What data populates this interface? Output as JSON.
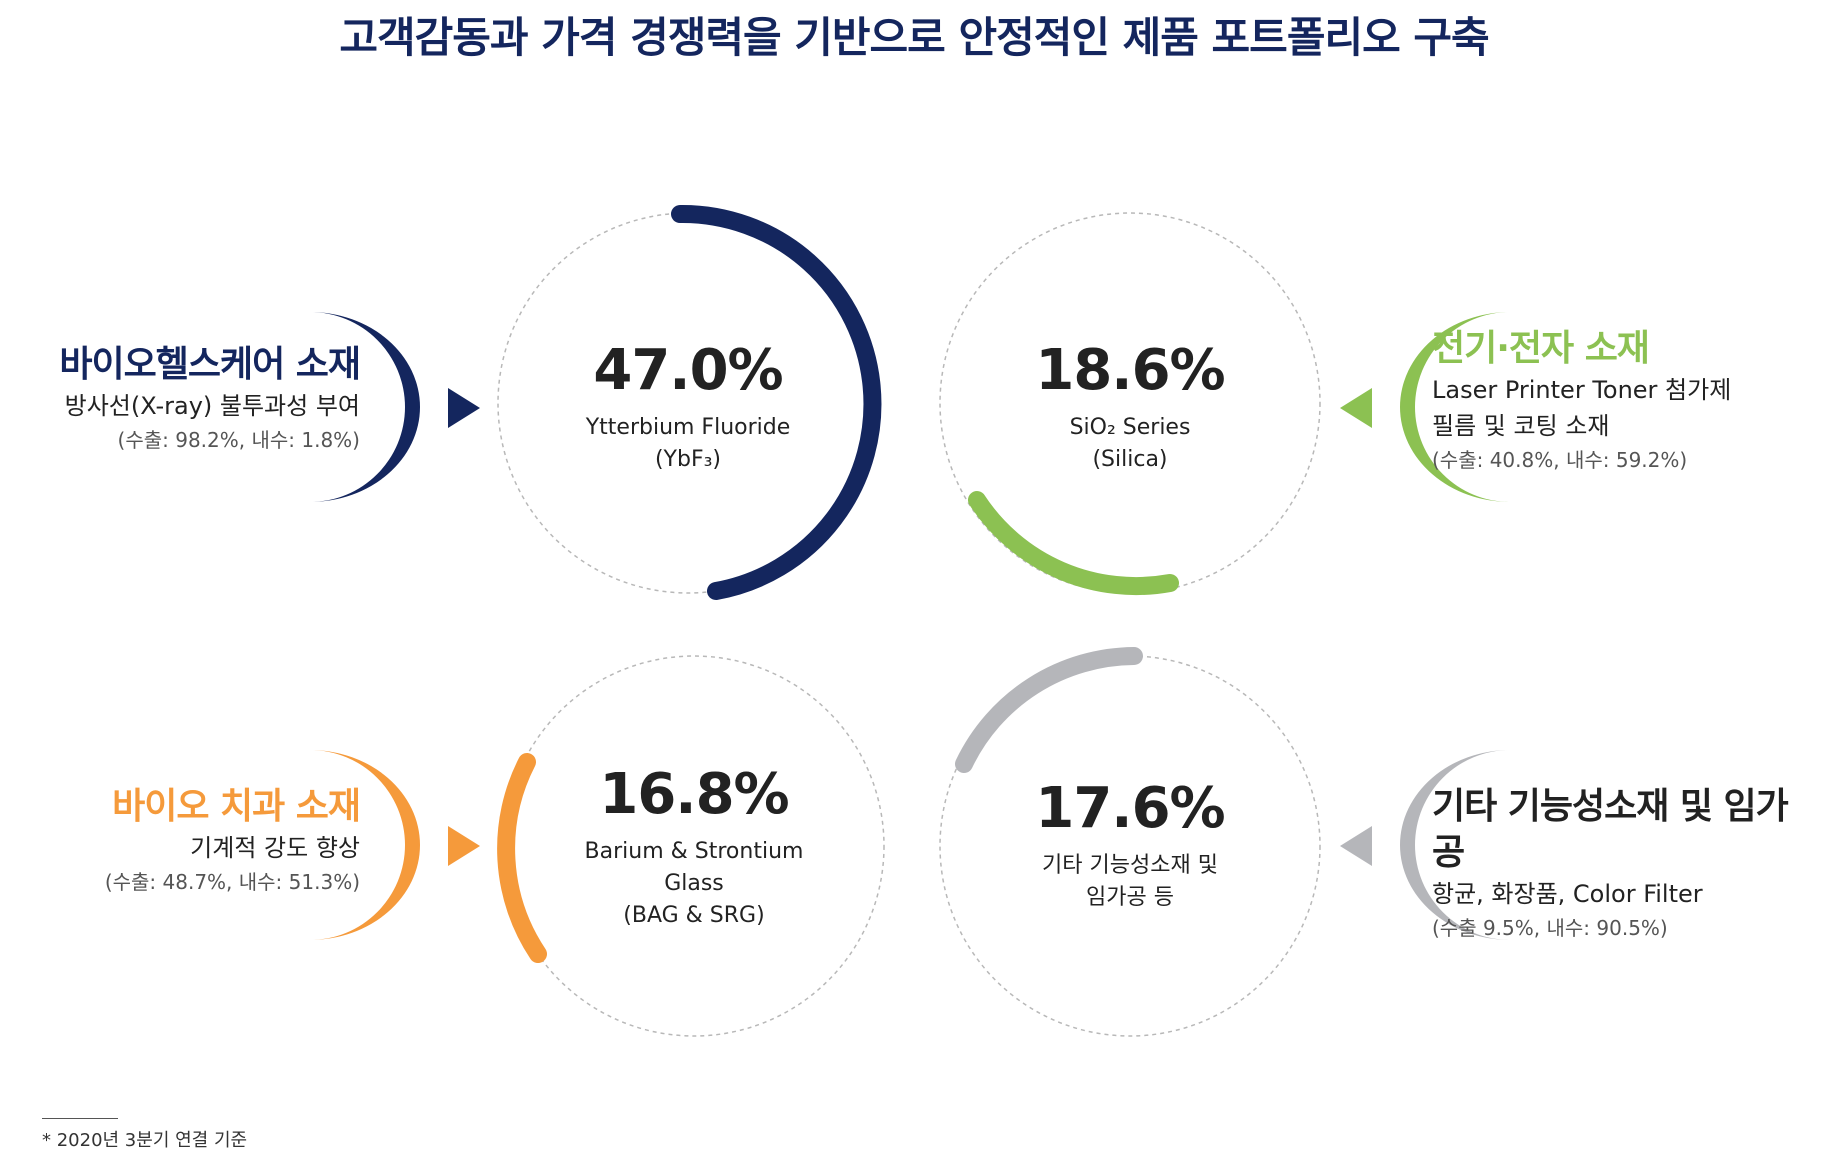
{
  "title": "고객감동과 가격 경쟁력을 기반으로 안정적인 제품 포트폴리오 구축",
  "segments": [
    {
      "share": "47.0%",
      "share_value": 47.0,
      "product_line1": "Ytterbium Fluoride",
      "product_line2": "(YbF₃)",
      "category": "바이오헬스케어 소재",
      "use": "방사선(X-ray) 불투과성 부여",
      "ratio": "(수출: 98.2%, 내수: 1.8%)",
      "color": "#14265e"
    },
    {
      "share": "18.6%",
      "share_value": 18.6,
      "product_line1": "SiO₂ Series",
      "product_line2": "(Silica)",
      "category": "전기·전자 소재",
      "use_line1": "Laser Printer Toner 첨가제",
      "use_line2": "필름 및 코팅 소재",
      "ratio": "(수출: 40.8%, 내수: 59.2%)",
      "color": "#8cc152"
    },
    {
      "share": "16.8%",
      "share_value": 16.8,
      "product_line1": "Barium & Strontium",
      "product_line2": "Glass",
      "product_line3": "(BAG & SRG)",
      "category": "바이오 치과 소재",
      "use": "기계적 강도 향상",
      "ratio": "(수출: 48.7%, 내수: 51.3%)",
      "color": "#f59a3b"
    },
    {
      "share": "17.6%",
      "share_value": 17.6,
      "product_line1": "기타 기능성소재 및",
      "product_line2": "임가공 등",
      "category": "기타 기능성소재 및 임가공",
      "use": "항균, 화장품, Color Filter",
      "ratio": "(수출 9.5%, 내수: 90.5%)",
      "color": "#b5b6ba"
    }
  ],
  "footnote": "* 2020년 3분기 연결 기준"
}
